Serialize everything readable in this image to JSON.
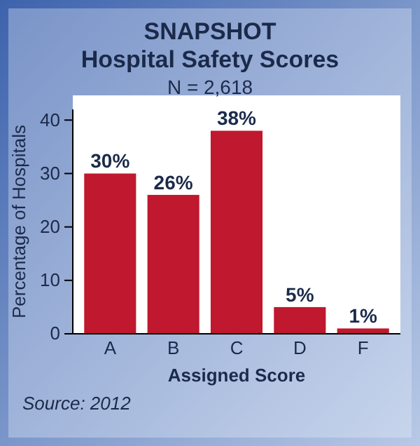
{
  "chart_data": {
    "type": "bar",
    "title": "SNAPSHOT",
    "subtitle": "Hospital Safety Scores",
    "annotations": [
      "N = 2,618",
      "Source: 2012"
    ],
    "xlabel": "Assigned Score",
    "ylabel": "Percentage of Hospitals",
    "categories": [
      "A",
      "B",
      "C",
      "D",
      "F"
    ],
    "values": [
      30,
      26,
      38,
      5,
      1
    ],
    "color": "#c0182e",
    "value_labels": [
      "30%",
      "26%",
      "38%",
      "5%",
      "1%"
    ],
    "ylim": [
      0,
      42
    ],
    "yticks": [
      0,
      10,
      20,
      30,
      40
    ],
    "grid": false
  }
}
